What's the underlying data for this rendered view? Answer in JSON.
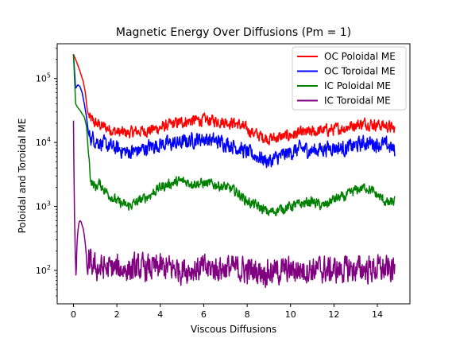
{
  "chart_data": {
    "type": "line",
    "title": "Magnetic Energy Over Diffusions (Pm = 1)",
    "xlabel": "Viscous Diffusions",
    "ylabel": "Poloidal and Toroidal ME",
    "xlim": [
      -0.75,
      15.5
    ],
    "ylim": [
      30,
      350000
    ],
    "y_scale": "log",
    "x_ticks": [
      0,
      2,
      4,
      6,
      8,
      10,
      12,
      14
    ],
    "x_tick_labels": [
      "0",
      "2",
      "4",
      "6",
      "8",
      "10",
      "12",
      "14"
    ],
    "y_ticks": [
      100,
      1000,
      10000,
      100000
    ],
    "y_tick_labels": [
      {
        "base": "10",
        "exp": "2"
      },
      {
        "base": "10",
        "exp": "3"
      },
      {
        "base": "10",
        "exp": "4"
      },
      {
        "base": "10",
        "exp": "5"
      }
    ],
    "legend_position": "top-right",
    "grid": false,
    "series": [
      {
        "name": "OC Poloidal ME",
        "color": "#ff0000",
        "x": [
          0,
          0.15,
          0.3,
          0.45,
          0.55,
          0.6,
          0.65,
          0.75,
          1,
          1.5,
          2,
          2.5,
          3,
          3.5,
          4,
          4.5,
          5,
          5.5,
          6,
          6.5,
          7,
          7.5,
          8,
          8.5,
          9,
          9.5,
          10,
          10.5,
          11,
          11.5,
          12,
          12.5,
          13,
          13.5,
          14,
          14.5,
          14.8
        ],
        "y": [
          240000,
          180000,
          130000,
          90000,
          60000,
          40000,
          30000,
          24000,
          20000,
          17000,
          14500,
          14000,
          15000,
          15500,
          17000,
          19000,
          21000,
          22000,
          22500,
          22000,
          21000,
          20000,
          16000,
          13000,
          11500,
          12000,
          13000,
          14000,
          14500,
          15500,
          16000,
          17000,
          19000,
          20000,
          19000,
          18000,
          16000
        ],
        "noise": 0.14
      },
      {
        "name": "OC Toroidal ME",
        "color": "#0000ff",
        "x": [
          0,
          0.1,
          0.2,
          0.3,
          0.4,
          0.5,
          0.6,
          0.7,
          1,
          1.5,
          2,
          2.5,
          3,
          3.5,
          4,
          4.5,
          5,
          5.5,
          6,
          6.5,
          7,
          7.5,
          8,
          8.5,
          9,
          9.5,
          10,
          10.5,
          11,
          11.5,
          12,
          12.5,
          13,
          13.5,
          14,
          14.5,
          14.8
        ],
        "y": [
          240000,
          70000,
          80000,
          75000,
          60000,
          40000,
          25000,
          13000,
          11000,
          9000,
          8000,
          7000,
          7500,
          8500,
          9500,
          9500,
          10000,
          11000,
          11500,
          10500,
          10000,
          8500,
          7000,
          6000,
          5000,
          6000,
          7000,
          8000,
          7500,
          8000,
          8500,
          8000,
          9000,
          10000,
          9500,
          9000,
          7500
        ],
        "noise": 0.18
      },
      {
        "name": "IC Poloidal ME",
        "color": "#008000",
        "x": [
          0,
          0.1,
          0.2,
          0.3,
          0.4,
          0.5,
          0.6,
          0.7,
          0.8,
          1,
          1.2,
          1.5,
          2,
          2.5,
          3,
          3.5,
          4,
          4.5,
          5,
          5.5,
          6,
          6.5,
          7,
          7.5,
          8,
          8.5,
          9,
          9.5,
          10,
          10.5,
          11,
          11.5,
          12,
          12.5,
          13,
          13.5,
          14,
          14.5,
          14.8
        ],
        "y": [
          240000,
          40000,
          35000,
          32000,
          28000,
          25000,
          18000,
          6000,
          2500,
          2000,
          2300,
          1700,
          1200,
          1000,
          1200,
          1500,
          2000,
          2300,
          2500,
          2300,
          2300,
          2200,
          2000,
          1700,
          1200,
          1000,
          800,
          900,
          1000,
          1100,
          1200,
          1000,
          1300,
          1400,
          1800,
          2000,
          1500,
          1100,
          1200
        ],
        "noise": 0.12
      },
      {
        "name": "IC Toroidal ME",
        "color": "#800080",
        "x": [
          0,
          0.04,
          0.08,
          0.12,
          0.16,
          0.2,
          0.25,
          0.3,
          0.35,
          0.4,
          0.45,
          0.5,
          0.55,
          0.6,
          0.62,
          0.66,
          0.7,
          0.8,
          1,
          2,
          3,
          4,
          5,
          6,
          7,
          8,
          9,
          10,
          11,
          12,
          13,
          14,
          14.8
        ],
        "y": [
          22000,
          1000,
          200,
          75,
          250,
          400,
          550,
          600,
          580,
          500,
          450,
          350,
          250,
          160,
          110,
          85,
          160,
          120,
          110,
          105,
          105,
          110,
          105,
          105,
          110,
          100,
          95,
          100,
          105,
          100,
          105,
          105,
          100
        ],
        "noise": 0.32
      }
    ]
  }
}
